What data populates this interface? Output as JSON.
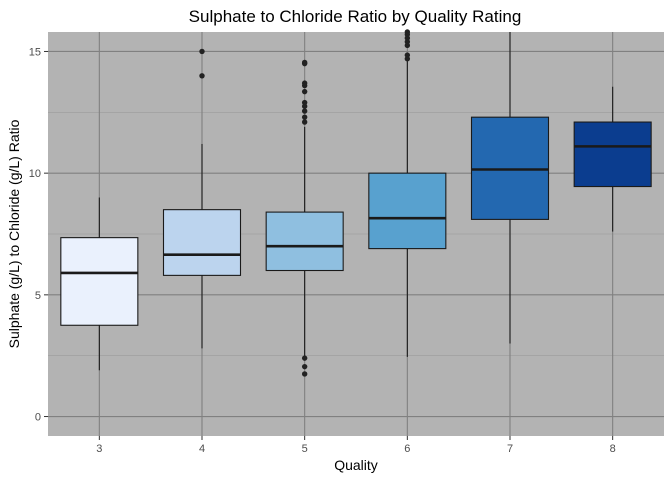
{
  "chart_data": {
    "type": "box",
    "title": "Sulphate to Chloride Ratio by Quality Rating",
    "xlabel": "Quality",
    "ylabel": "Sulphate (g/L) to Chloride (g/L) Ratio",
    "ylim": [
      -0.8,
      15.8
    ],
    "y_ticks": [
      0,
      5,
      10,
      15
    ],
    "grid": true,
    "legend": "none",
    "colors": {
      "panel_background": "#b3b3b3",
      "major_grid": "#808080",
      "minor_grid": "#9a9a9a",
      "box_outline": "#1a1a1a",
      "outlier": "#222222"
    },
    "categories": [
      "3",
      "4",
      "5",
      "6",
      "7",
      "8"
    ],
    "boxes": [
      {
        "category": "3",
        "fill": "#eaf1fd",
        "whisker_low": 1.9,
        "q1": 3.75,
        "median": 5.9,
        "q3": 7.35,
        "whisker_high": 9.0,
        "outliers": []
      },
      {
        "category": "4",
        "fill": "#bcd4ee",
        "whisker_low": 2.8,
        "q1": 5.8,
        "median": 6.65,
        "q3": 8.5,
        "whisker_high": 11.2,
        "outliers": [
          14.0,
          15.0
        ]
      },
      {
        "category": "5",
        "fill": "#8fbfe0",
        "whisker_low": 2.5,
        "q1": 6.0,
        "median": 7.0,
        "q3": 8.4,
        "whisker_high": 11.9,
        "outliers": [
          1.75,
          2.05,
          2.4,
          12.1,
          12.3,
          12.55,
          12.75,
          12.9,
          13.35,
          13.6,
          13.7,
          14.5,
          14.55
        ]
      },
      {
        "category": "6",
        "fill": "#58a1cf",
        "whisker_low": 2.45,
        "q1": 6.9,
        "median": 8.15,
        "q3": 10.0,
        "whisker_high": 14.6,
        "outliers": [
          14.7,
          14.85,
          15.25,
          15.4,
          15.55,
          15.7,
          15.8
        ]
      },
      {
        "category": "7",
        "fill": "#2368b0",
        "whisker_low": 3.0,
        "q1": 8.1,
        "median": 10.15,
        "q3": 12.3,
        "whisker_high": 15.8,
        "outliers": []
      },
      {
        "category": "8",
        "fill": "#0b3d8f",
        "whisker_low": 7.6,
        "q1": 9.45,
        "median": 11.1,
        "q3": 12.1,
        "whisker_high": 13.55,
        "outliers": []
      }
    ]
  }
}
